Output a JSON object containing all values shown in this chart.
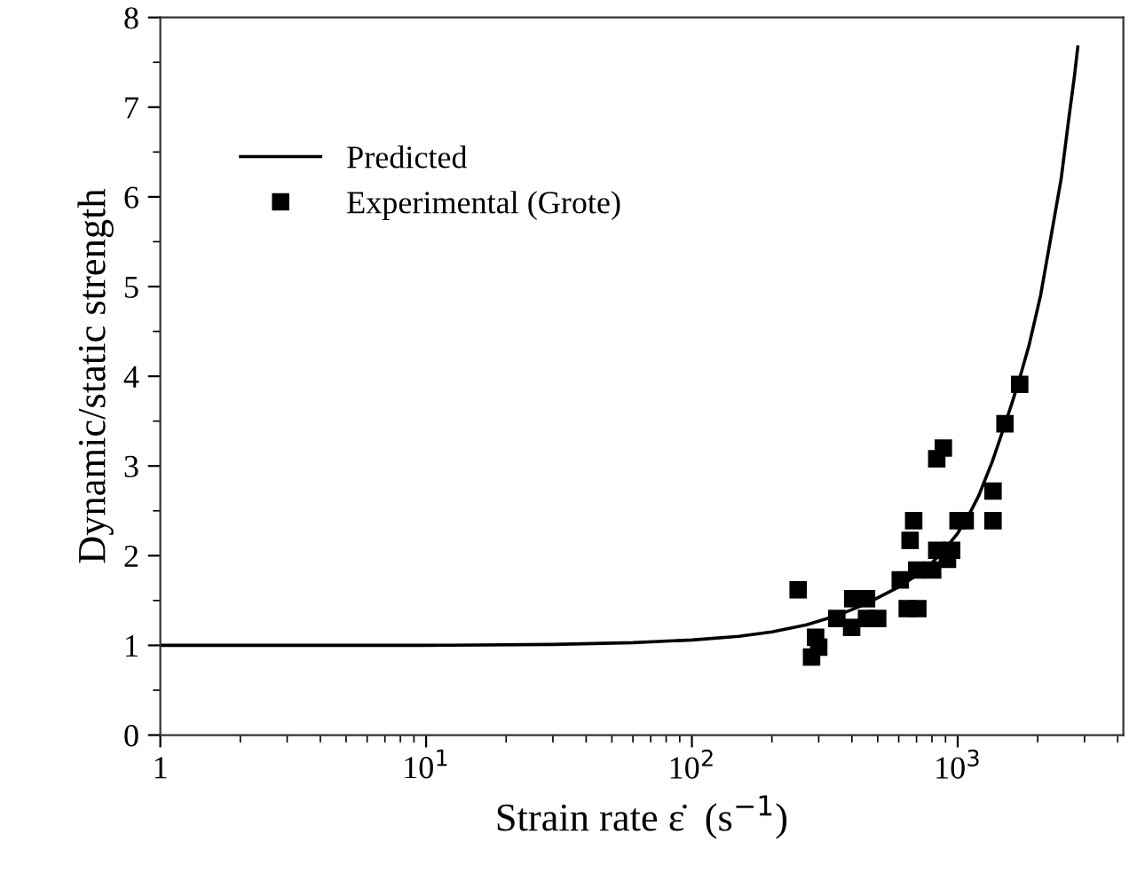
{
  "chart_data": {
    "type": "scatter",
    "xlabel": "Strain rate ε̇  (s$^{−1}$)",
    "ylabel": "Dynamic/static strength",
    "log": "x",
    "xlim": [
      1,
      4200
    ],
    "ylim": [
      0,
      8
    ],
    "xticks": [
      1,
      {
        "value": 10,
        "label": "10$^{1}$"
      },
      {
        "value": 100,
        "label": "10$^{2}$"
      },
      {
        "value": 1000,
        "label": "10$^{3}$"
      }
    ],
    "yticks": [
      0,
      1,
      2,
      3,
      4,
      5,
      6,
      7,
      8
    ],
    "grid": false,
    "legend": "top left",
    "series": [
      {
        "name": "Predicted",
        "type": "line",
        "color": "#000000",
        "marker": "none",
        "line_style": "solid",
        "x": [
          1,
          10,
          30,
          60,
          100,
          150,
          200,
          270,
          350,
          450,
          600,
          700,
          800,
          900,
          1000,
          1100,
          1200,
          1350,
          1500,
          1600,
          1700,
          1857,
          2050,
          2245,
          2450,
          2620,
          2750,
          2830
        ],
        "values": [
          1.0,
          1.0,
          1.01,
          1.03,
          1.06,
          1.1,
          1.15,
          1.23,
          1.33,
          1.46,
          1.65,
          1.78,
          1.92,
          2.08,
          2.25,
          2.45,
          2.67,
          3.05,
          3.45,
          3.7,
          3.95,
          4.35,
          4.9,
          5.56,
          6.2,
          6.88,
          7.35,
          7.67
        ]
      },
      {
        "name": "Experimental (Grote)",
        "color": "#000000",
        "marker": "square",
        "x": [
          251,
          282,
          300,
          292,
          351,
          399,
          403,
          454,
          454,
          500,
          608,
          646,
          708,
          662,
          683,
          701,
          805,
          834,
          915,
          949,
          834,
          883,
          1003,
          1067,
          1358,
          1358,
          1506,
          1711
        ],
        "values": [
          1.62,
          0.87,
          0.98,
          1.09,
          1.3,
          1.2,
          1.52,
          1.52,
          1.3,
          1.3,
          1.73,
          1.41,
          1.41,
          2.17,
          2.39,
          1.84,
          1.84,
          2.06,
          1.96,
          2.06,
          3.08,
          3.2,
          2.39,
          2.39,
          2.72,
          2.39,
          3.47,
          3.91
        ]
      }
    ]
  }
}
